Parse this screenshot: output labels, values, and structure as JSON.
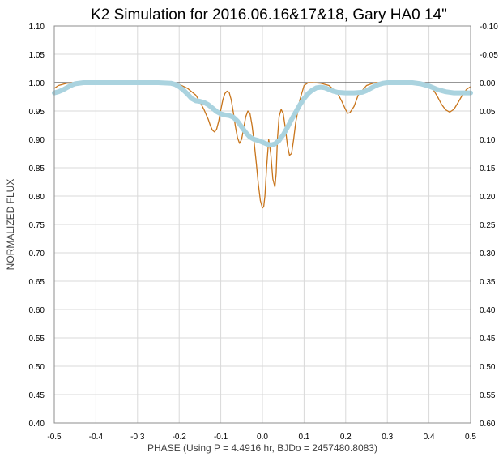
{
  "chart_data": {
    "type": "line",
    "title": "K2 Simulation for 2016.06.16&17&18, Gary HA0 14\"",
    "xlabel": "PHASE (Using P = 4.4916 hr, BJDo = 2457480.8083)",
    "ylabel": "NORMALIZED FLUX",
    "xlim": [
      -0.5,
      0.5
    ],
    "ylim": [
      0.4,
      1.1
    ],
    "y2lim": [
      -0.1,
      0.6
    ],
    "y2_reversed": true,
    "grid": true,
    "legend": "none",
    "x_ticks": [
      "-0.5",
      "-0.4",
      "-0.3",
      "-0.2",
      "-0.1",
      "0.0",
      "0.1",
      "0.2",
      "0.3",
      "0.4",
      "0.5"
    ],
    "y_ticks": [
      "1.10",
      "1.05",
      "1.00",
      "0.95",
      "0.90",
      "0.85",
      "0.80",
      "0.75",
      "0.70",
      "0.65",
      "0.60",
      "0.55",
      "0.50",
      "0.45",
      "0.40"
    ],
    "y2_ticks": [
      "-0.10",
      "-0.05",
      "0.00",
      "0.05",
      "0.10",
      "0.15",
      "0.20",
      "0.25",
      "0.30",
      "0.35",
      "0.40",
      "0.45",
      "0.50",
      "0.55",
      "0.60"
    ],
    "reference_line": {
      "y": 1.0,
      "color": "#595959"
    },
    "series": [
      {
        "style": "line",
        "color": "#c8741a",
        "x": [
          -0.5,
          -0.49,
          -0.47,
          -0.45,
          -0.4,
          -0.3,
          -0.22,
          -0.2,
          -0.18,
          -0.16,
          -0.15,
          -0.14,
          -0.13,
          -0.125,
          -0.12,
          -0.115,
          -0.11,
          -0.105,
          -0.1,
          -0.095,
          -0.09,
          -0.085,
          -0.08,
          -0.075,
          -0.07,
          -0.065,
          -0.06,
          -0.055,
          -0.05,
          -0.045,
          -0.04,
          -0.035,
          -0.03,
          -0.025,
          -0.02,
          -0.015,
          -0.01,
          -0.005,
          0.0,
          0.003,
          0.006,
          0.01,
          0.015,
          0.02,
          0.025,
          0.03,
          0.033,
          0.036,
          0.04,
          0.045,
          0.05,
          0.055,
          0.06,
          0.065,
          0.07,
          0.075,
          0.08,
          0.09,
          0.1,
          0.11,
          0.12,
          0.14,
          0.16,
          0.18,
          0.19,
          0.2,
          0.205,
          0.21,
          0.22,
          0.23,
          0.25,
          0.27,
          0.3,
          0.33,
          0.36,
          0.38,
          0.4,
          0.41,
          0.42,
          0.43,
          0.44,
          0.45,
          0.46,
          0.47,
          0.48,
          0.49,
          0.5
        ],
        "y": [
          0.99,
          0.995,
          0.999,
          1.0,
          1.0,
          1.0,
          1.0,
          0.997,
          0.99,
          0.978,
          0.966,
          0.952,
          0.935,
          0.924,
          0.916,
          0.913,
          0.918,
          0.932,
          0.952,
          0.97,
          0.981,
          0.985,
          0.983,
          0.97,
          0.948,
          0.923,
          0.903,
          0.893,
          0.9,
          0.92,
          0.94,
          0.95,
          0.946,
          0.925,
          0.895,
          0.86,
          0.822,
          0.792,
          0.779,
          0.781,
          0.8,
          0.85,
          0.9,
          0.875,
          0.83,
          0.816,
          0.84,
          0.9,
          0.94,
          0.953,
          0.945,
          0.92,
          0.89,
          0.872,
          0.875,
          0.9,
          0.93,
          0.97,
          0.995,
          1.0,
          1.0,
          0.999,
          0.995,
          0.982,
          0.968,
          0.952,
          0.946,
          0.947,
          0.958,
          0.978,
          0.995,
          1.0,
          1.0,
          1.0,
          1.0,
          1.0,
          0.996,
          0.988,
          0.976,
          0.962,
          0.952,
          0.948,
          0.953,
          0.965,
          0.978,
          0.988,
          0.993
        ]
      },
      {
        "style": "thick-line",
        "color": "#aad3df",
        "x": [
          -0.5,
          -0.49,
          -0.48,
          -0.47,
          -0.46,
          -0.45,
          -0.43,
          -0.4,
          -0.35,
          -0.3,
          -0.25,
          -0.22,
          -0.21,
          -0.2,
          -0.19,
          -0.18,
          -0.17,
          -0.16,
          -0.15,
          -0.14,
          -0.13,
          -0.12,
          -0.11,
          -0.1,
          -0.09,
          -0.08,
          -0.07,
          -0.06,
          -0.05,
          -0.04,
          -0.03,
          -0.02,
          -0.01,
          0.0,
          0.01,
          0.02,
          0.03,
          0.04,
          0.05,
          0.06,
          0.07,
          0.08,
          0.09,
          0.1,
          0.11,
          0.12,
          0.13,
          0.14,
          0.15,
          0.16,
          0.17,
          0.18,
          0.2,
          0.22,
          0.24,
          0.25,
          0.26,
          0.27,
          0.28,
          0.29,
          0.3,
          0.32,
          0.34,
          0.36,
          0.38,
          0.4,
          0.42,
          0.44,
          0.46,
          0.48,
          0.5
        ],
        "y": [
          0.982,
          0.984,
          0.987,
          0.991,
          0.995,
          0.998,
          1.0,
          1.0,
          1.0,
          1.0,
          1.0,
          0.999,
          0.997,
          0.993,
          0.987,
          0.98,
          0.972,
          0.968,
          0.967,
          0.965,
          0.961,
          0.955,
          0.949,
          0.945,
          0.943,
          0.942,
          0.939,
          0.932,
          0.922,
          0.912,
          0.904,
          0.9,
          0.898,
          0.895,
          0.892,
          0.89,
          0.892,
          0.898,
          0.908,
          0.921,
          0.935,
          0.948,
          0.961,
          0.972,
          0.981,
          0.987,
          0.991,
          0.992,
          0.991,
          0.988,
          0.985,
          0.983,
          0.982,
          0.982,
          0.983,
          0.986,
          0.99,
          0.994,
          0.997,
          0.999,
          1.0,
          1.0,
          1.0,
          1.0,
          0.998,
          0.994,
          0.988,
          0.984,
          0.982,
          0.982,
          0.982
        ]
      }
    ]
  }
}
